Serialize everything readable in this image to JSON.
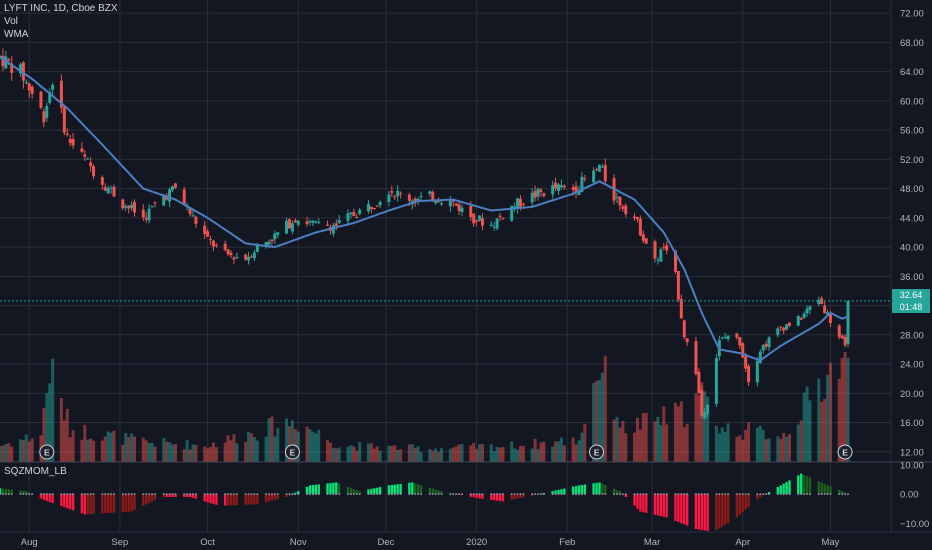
{
  "legend": {
    "title": "LYFT INC, 1D, Cboe BZX",
    "vol": "Vol",
    "wma": "WMA",
    "sqz": "SQZMOM_LB"
  },
  "last_price": {
    "label": "32.64",
    "timer": "01:48"
  },
  "colors": {
    "up": "#26a69a",
    "down": "#ef5350",
    "wma": "#4a7fc1",
    "background": "#131722",
    "grid": "#2a2e39",
    "text": "#b2b5be",
    "mom_strong_up": "#00e676",
    "mom_weak_up": "#1b5e20",
    "mom_strong_down": "#ff1744",
    "mom_weak_down": "#8b1a1a"
  },
  "chart_data": [
    {
      "type": "candlestick",
      "title": "LYFT INC, 1D, Cboe BZX",
      "y_ticks": [
        "72.00",
        "68.00",
        "64.00",
        "60.00",
        "56.00",
        "52.00",
        "48.00",
        "44.00",
        "40.00",
        "36.00",
        "32.00",
        "28.00",
        "24.00",
        "20.00",
        "16.00",
        "12.00"
      ],
      "ylim": [
        10.6,
        73.8
      ],
      "x_ticks": [
        "Aug",
        "Sep",
        "Oct",
        "Nov",
        "Dec",
        "2020",
        "Feb",
        "Mar",
        "Apr",
        "May"
      ],
      "x_range": [
        "2019-07-22",
        "2020-05-07"
      ],
      "earnings_markers": [
        {
          "date": "2019-08-07",
          "label": "E"
        },
        {
          "date": "2019-10-30",
          "label": "E"
        },
        {
          "date": "2020-02-11",
          "label": "E"
        },
        {
          "date": "2020-05-06",
          "label": "E"
        }
      ],
      "last_price": 32.64,
      "anchors": [
        [
          "2019-07-22",
          66
        ],
        [
          "2019-07-29",
          64
        ],
        [
          "2019-08-02",
          61
        ],
        [
          "2019-08-06",
          58
        ],
        [
          "2019-08-09",
          63
        ],
        [
          "2019-08-14",
          55
        ],
        [
          "2019-08-20",
          52
        ],
        [
          "2019-08-26",
          49
        ],
        [
          "2019-09-02",
          46
        ],
        [
          "2019-09-09",
          44
        ],
        [
          "2019-09-16",
          47
        ],
        [
          "2019-09-20",
          48
        ],
        [
          "2019-09-26",
          44
        ],
        [
          "2019-10-01",
          41
        ],
        [
          "2019-10-07",
          39
        ],
        [
          "2019-10-14",
          38.5
        ],
        [
          "2019-10-18",
          40
        ],
        [
          "2019-10-24",
          41.5
        ],
        [
          "2019-10-31",
          44
        ],
        [
          "2019-11-07",
          43
        ],
        [
          "2019-11-14",
          43
        ],
        [
          "2019-11-20",
          44.5
        ],
        [
          "2019-11-27",
          46
        ],
        [
          "2019-12-02",
          48
        ],
        [
          "2019-12-06",
          47
        ],
        [
          "2019-12-12",
          46.5
        ],
        [
          "2019-12-18",
          47
        ],
        [
          "2019-12-24",
          46
        ],
        [
          "2019-12-31",
          44
        ],
        [
          "2020-01-06",
          43
        ],
        [
          "2020-01-13",
          45.5
        ],
        [
          "2020-01-20",
          47
        ],
        [
          "2020-01-27",
          48
        ],
        [
          "2020-02-03",
          48
        ],
        [
          "2020-02-10",
          50
        ],
        [
          "2020-02-12",
          51
        ],
        [
          "2020-02-17",
          47
        ],
        [
          "2020-02-24",
          44
        ],
        [
          "2020-03-02",
          38
        ],
        [
          "2020-03-05",
          40
        ],
        [
          "2020-03-09",
          36
        ],
        [
          "2020-03-12",
          28
        ],
        [
          "2020-03-16",
          23
        ],
        [
          "2020-03-18",
          17
        ],
        [
          "2020-03-20",
          19
        ],
        [
          "2020-03-24",
          27
        ],
        [
          "2020-03-27",
          28
        ],
        [
          "2020-03-31",
          27
        ],
        [
          "2020-04-03",
          22
        ],
        [
          "2020-04-07",
          26
        ],
        [
          "2020-04-14",
          29
        ],
        [
          "2020-04-20",
          30
        ],
        [
          "2020-04-27",
          33
        ],
        [
          "2020-05-01",
          30
        ],
        [
          "2020-05-05",
          27
        ],
        [
          "2020-05-06",
          26
        ],
        [
          "2020-05-07",
          32.6
        ]
      ],
      "wma_anchors": [
        [
          "2019-07-22",
          66
        ],
        [
          "2019-08-02",
          63
        ],
        [
          "2019-08-14",
          59
        ],
        [
          "2019-08-26",
          54
        ],
        [
          "2019-09-09",
          48
        ],
        [
          "2019-09-20",
          46.5
        ],
        [
          "2019-10-01",
          44
        ],
        [
          "2019-10-14",
          40.5
        ],
        [
          "2019-10-24",
          40
        ],
        [
          "2019-11-07",
          42
        ],
        [
          "2019-11-20",
          43.3
        ],
        [
          "2019-12-02",
          45
        ],
        [
          "2019-12-12",
          46.3
        ],
        [
          "2019-12-24",
          46.5
        ],
        [
          "2020-01-06",
          45
        ],
        [
          "2020-01-20",
          45.5
        ],
        [
          "2020-02-03",
          47.3
        ],
        [
          "2020-02-12",
          49
        ],
        [
          "2020-02-24",
          46.5
        ],
        [
          "2020-03-05",
          42
        ],
        [
          "2020-03-12",
          37
        ],
        [
          "2020-03-18",
          31
        ],
        [
          "2020-03-24",
          26
        ],
        [
          "2020-03-31",
          25.5
        ],
        [
          "2020-04-07",
          24.5
        ],
        [
          "2020-04-14",
          26.5
        ],
        [
          "2020-04-27",
          29.5
        ],
        [
          "2020-05-01",
          31
        ],
        [
          "2020-05-05",
          30.2
        ],
        [
          "2020-05-07",
          30.5
        ]
      ],
      "volume_anchors": [
        [
          "2019-07-22",
          0.15
        ],
        [
          "2019-08-05",
          0.25
        ],
        [
          "2019-08-08",
          0.85
        ],
        [
          "2019-08-15",
          0.3
        ],
        [
          "2019-09-10",
          0.18
        ],
        [
          "2019-10-01",
          0.15
        ],
        [
          "2019-10-31",
          0.38
        ],
        [
          "2019-11-15",
          0.15
        ],
        [
          "2019-12-15",
          0.12
        ],
        [
          "2020-01-15",
          0.15
        ],
        [
          "2020-02-05",
          0.2
        ],
        [
          "2020-02-12",
          0.9
        ],
        [
          "2020-02-20",
          0.3
        ],
        [
          "2020-03-12",
          0.45
        ],
        [
          "2020-03-18",
          0.6
        ],
        [
          "2020-03-25",
          0.3
        ],
        [
          "2020-04-15",
          0.25
        ],
        [
          "2020-05-06",
          1.0
        ]
      ]
    },
    {
      "type": "bar",
      "title": "SQZMOM_LB",
      "y_ticks": [
        "10.00",
        "0.00",
        "−10.00"
      ],
      "ylim": [
        -13,
        11
      ],
      "momentum_anchors": [
        [
          "2019-07-22",
          2
        ],
        [
          "2019-07-31",
          1
        ],
        [
          "2019-08-06",
          -2
        ],
        [
          "2019-08-20",
          -7
        ],
        [
          "2019-09-05",
          -6
        ],
        [
          "2019-09-15",
          -1
        ],
        [
          "2019-09-25",
          -1
        ],
        [
          "2019-10-05",
          -4
        ],
        [
          "2019-10-18",
          -3.5
        ],
        [
          "2019-10-28",
          -1
        ],
        [
          "2019-11-05",
          3
        ],
        [
          "2019-11-14",
          4
        ],
        [
          "2019-11-22",
          1
        ],
        [
          "2019-12-02",
          3
        ],
        [
          "2019-12-10",
          4
        ],
        [
          "2019-12-20",
          1
        ],
        [
          "2020-01-02",
          -1.5
        ],
        [
          "2020-01-10",
          -2.5
        ],
        [
          "2020-01-20",
          -0.5
        ],
        [
          "2020-01-27",
          1
        ],
        [
          "2020-02-05",
          3
        ],
        [
          "2020-02-12",
          4
        ],
        [
          "2020-02-19",
          1
        ],
        [
          "2020-02-26",
          -6
        ],
        [
          "2020-03-06",
          -8
        ],
        [
          "2020-03-16",
          -12
        ],
        [
          "2020-03-22",
          -13
        ],
        [
          "2020-03-30",
          -8
        ],
        [
          "2020-04-07",
          -1
        ],
        [
          "2020-04-14",
          3
        ],
        [
          "2020-04-21",
          7
        ],
        [
          "2020-04-28",
          4
        ],
        [
          "2020-05-05",
          1
        ],
        [
          "2020-05-07",
          0
        ]
      ]
    }
  ]
}
